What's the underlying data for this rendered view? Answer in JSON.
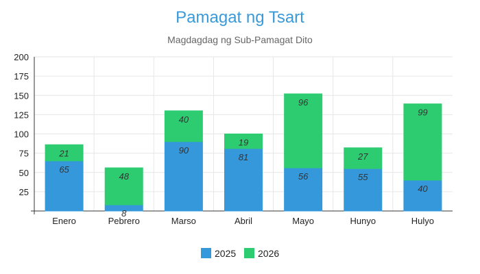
{
  "chart_data": {
    "type": "bar",
    "stacked": true,
    "title": "Pamagat ng Tsart",
    "subtitle": "Magdagdag ng Sub-Pamagat Dito",
    "categories": [
      "Enero",
      "Pebrero",
      "Marso",
      "Abril",
      "Mayo",
      "Hunyo",
      "Hulyo"
    ],
    "series": [
      {
        "name": "2025",
        "values": [
          65,
          8,
          90,
          81,
          56,
          55,
          40
        ],
        "color": "#3498db"
      },
      {
        "name": "2026",
        "values": [
          21,
          48,
          40,
          19,
          96,
          27,
          99
        ],
        "color": "#2ecc71"
      }
    ],
    "ylim": [
      0,
      200
    ],
    "yticks": [
      25,
      50,
      75,
      100,
      125,
      150,
      175,
      200
    ],
    "grid": true,
    "legend": "bottom"
  }
}
